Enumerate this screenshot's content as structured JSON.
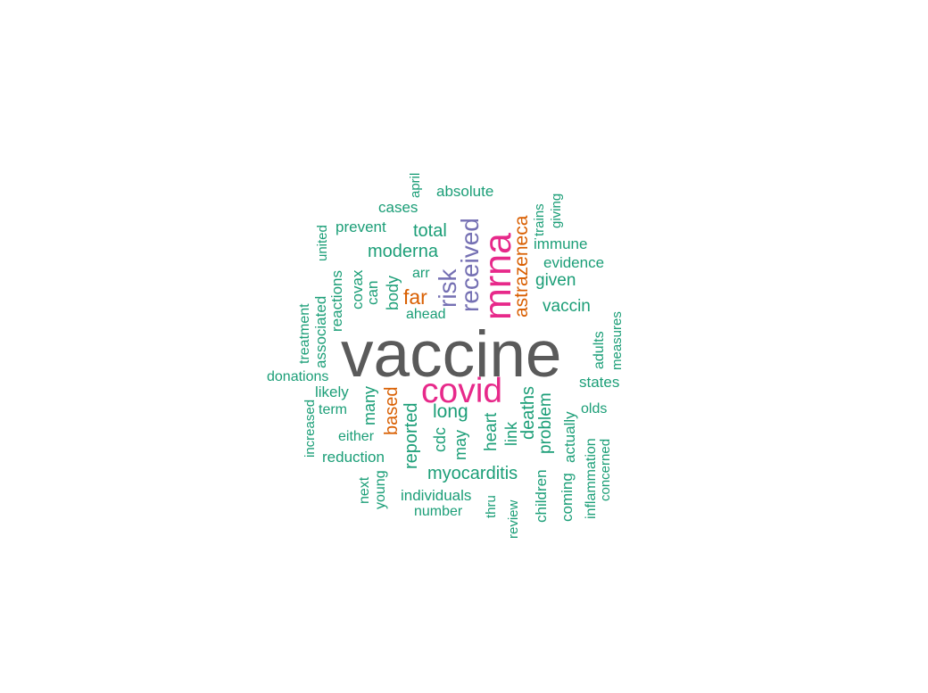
{
  "word_cloud": {
    "colors": {
      "gray": "#5a5a5a",
      "magenta": "#e7298a",
      "purple": "#7570b3",
      "orange": "#d95f02",
      "teal": "#1b9e77"
    },
    "words": [
      {
        "id": "vaccine",
        "text": "vaccine",
        "color": "gray"
      },
      {
        "id": "mrna",
        "text": "mrna",
        "color": "magenta"
      },
      {
        "id": "covid",
        "text": "covid",
        "color": "magenta"
      },
      {
        "id": "received",
        "text": "received",
        "color": "purple"
      },
      {
        "id": "risk",
        "text": "risk",
        "color": "purple"
      },
      {
        "id": "astrazeneca",
        "text": "astrazeneca",
        "color": "orange"
      },
      {
        "id": "far",
        "text": "far",
        "color": "orange"
      },
      {
        "id": "based",
        "text": "based",
        "color": "orange"
      },
      {
        "id": "absolute",
        "text": "absolute",
        "color": "teal"
      },
      {
        "id": "april",
        "text": "april",
        "color": "teal"
      },
      {
        "id": "cases",
        "text": "cases",
        "color": "teal"
      },
      {
        "id": "prevent",
        "text": "prevent",
        "color": "teal"
      },
      {
        "id": "total",
        "text": "total",
        "color": "teal"
      },
      {
        "id": "moderna",
        "text": "moderna",
        "color": "teal"
      },
      {
        "id": "arr",
        "text": "arr",
        "color": "teal"
      },
      {
        "id": "ahead",
        "text": "ahead",
        "color": "teal"
      },
      {
        "id": "united",
        "text": "united",
        "color": "teal"
      },
      {
        "id": "covax",
        "text": "covax",
        "color": "teal"
      },
      {
        "id": "can",
        "text": "can",
        "color": "teal"
      },
      {
        "id": "body",
        "text": "body",
        "color": "teal"
      },
      {
        "id": "reactions",
        "text": "reactions",
        "color": "teal"
      },
      {
        "id": "associated",
        "text": "associated",
        "color": "teal"
      },
      {
        "id": "treatment",
        "text": "treatment",
        "color": "teal"
      },
      {
        "id": "trains",
        "text": "trains",
        "color": "teal"
      },
      {
        "id": "giving",
        "text": "giving",
        "color": "teal"
      },
      {
        "id": "immune",
        "text": "immune",
        "color": "teal"
      },
      {
        "id": "evidence",
        "text": "evidence",
        "color": "teal"
      },
      {
        "id": "given",
        "text": "given",
        "color": "teal"
      },
      {
        "id": "vaccin",
        "text": "vaccin",
        "color": "teal"
      },
      {
        "id": "measures",
        "text": "measures",
        "color": "teal"
      },
      {
        "id": "adults",
        "text": "adults",
        "color": "teal"
      },
      {
        "id": "states",
        "text": "states",
        "color": "teal"
      },
      {
        "id": "donations",
        "text": "donations",
        "color": "teal"
      },
      {
        "id": "likely",
        "text": "likely",
        "color": "teal"
      },
      {
        "id": "term",
        "text": "term",
        "color": "teal"
      },
      {
        "id": "increased",
        "text": "increased",
        "color": "teal"
      },
      {
        "id": "either",
        "text": "either",
        "color": "teal"
      },
      {
        "id": "reduction",
        "text": "reduction",
        "color": "teal"
      },
      {
        "id": "many",
        "text": "many",
        "color": "teal"
      },
      {
        "id": "reported",
        "text": "reported",
        "color": "teal"
      },
      {
        "id": "long",
        "text": "long",
        "color": "teal"
      },
      {
        "id": "cdc",
        "text": "cdc",
        "color": "teal"
      },
      {
        "id": "may",
        "text": "may",
        "color": "teal"
      },
      {
        "id": "heart",
        "text": "heart",
        "color": "teal"
      },
      {
        "id": "link",
        "text": "link",
        "color": "teal"
      },
      {
        "id": "deaths",
        "text": "deaths",
        "color": "teal"
      },
      {
        "id": "problem",
        "text": "problem",
        "color": "teal"
      },
      {
        "id": "actually",
        "text": "actually",
        "color": "teal"
      },
      {
        "id": "olds",
        "text": "olds",
        "color": "teal"
      },
      {
        "id": "myocarditis",
        "text": "myocarditis",
        "color": "teal"
      },
      {
        "id": "individuals",
        "text": "individuals",
        "color": "teal"
      },
      {
        "id": "number",
        "text": "number",
        "color": "teal"
      },
      {
        "id": "next",
        "text": "next",
        "color": "teal"
      },
      {
        "id": "young",
        "text": "young",
        "color": "teal"
      },
      {
        "id": "thru",
        "text": "thru",
        "color": "teal"
      },
      {
        "id": "review",
        "text": "review",
        "color": "teal"
      },
      {
        "id": "children",
        "text": "children",
        "color": "teal"
      },
      {
        "id": "coming",
        "text": "coming",
        "color": "teal"
      },
      {
        "id": "inflammation",
        "text": "inflammation",
        "color": "teal"
      },
      {
        "id": "concerned",
        "text": "concerned",
        "color": "teal"
      }
    ]
  }
}
